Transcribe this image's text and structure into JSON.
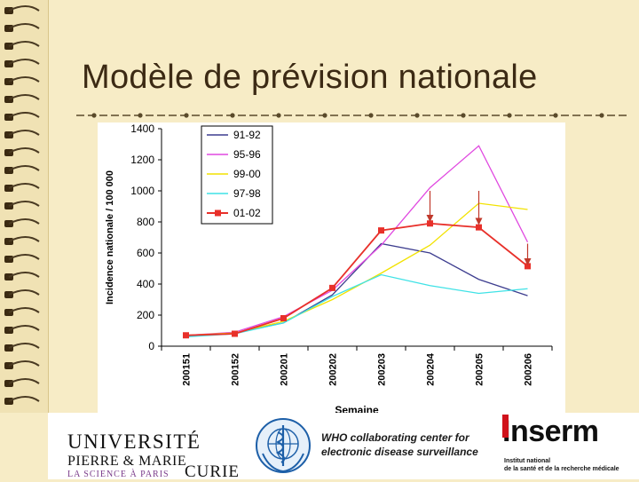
{
  "slide": {
    "title": "Modèle de prévision nationale"
  },
  "chart_data": {
    "type": "line",
    "categories": [
      "200151",
      "200152",
      "200201",
      "200202",
      "200203",
      "200204",
      "200205",
      "200206"
    ],
    "xlabel": "Semaine",
    "ylabel": "Incidence nationale / 100 000",
    "ylim": [
      0,
      1400
    ],
    "yticks": [
      0,
      200,
      400,
      600,
      800,
      1000,
      1200,
      1400
    ],
    "grid": false,
    "legend_position": "top-left",
    "series": [
      {
        "name": "91-92",
        "color": "#3d3d8f",
        "markers": false,
        "values": [
          65,
          85,
          150,
          330,
          660,
          600,
          430,
          325
        ]
      },
      {
        "name": "95-96",
        "color": "#e048e0",
        "markers": false,
        "values": [
          70,
          90,
          190,
          360,
          650,
          1020,
          1290,
          670
        ]
      },
      {
        "name": "99-00",
        "color": "#f2e200",
        "markers": false,
        "values": [
          70,
          85,
          160,
          300,
          470,
          650,
          920,
          880
        ]
      },
      {
        "name": "97-98",
        "color": "#3fe2e6",
        "markers": false,
        "values": [
          60,
          80,
          150,
          320,
          460,
          390,
          340,
          370
        ]
      },
      {
        "name": "01-02",
        "color": "#e8302a",
        "markers": true,
        "values": [
          70,
          80,
          180,
          375,
          745,
          790,
          765,
          515
        ]
      }
    ],
    "arrows": [
      {
        "x": "200204",
        "from": 1000,
        "to": 800
      },
      {
        "x": "200205",
        "from": 1000,
        "to": 780
      },
      {
        "x": "200206",
        "from": 660,
        "to": 520
      }
    ]
  },
  "footer": {
    "university_line1": "UNIVERSITÉ",
    "university_line2": "PIERRE & MARIE",
    "university_curie": "CURIE",
    "university_tagline": "LA SCIENCE À PARIS",
    "who_line1": "WHO collaborating center for",
    "who_line2": "electronic disease surveillance",
    "inserm_name": "Inserm",
    "inserm_line1": "Institut national",
    "inserm_line2": "de la santé et de la recherche médicale"
  }
}
